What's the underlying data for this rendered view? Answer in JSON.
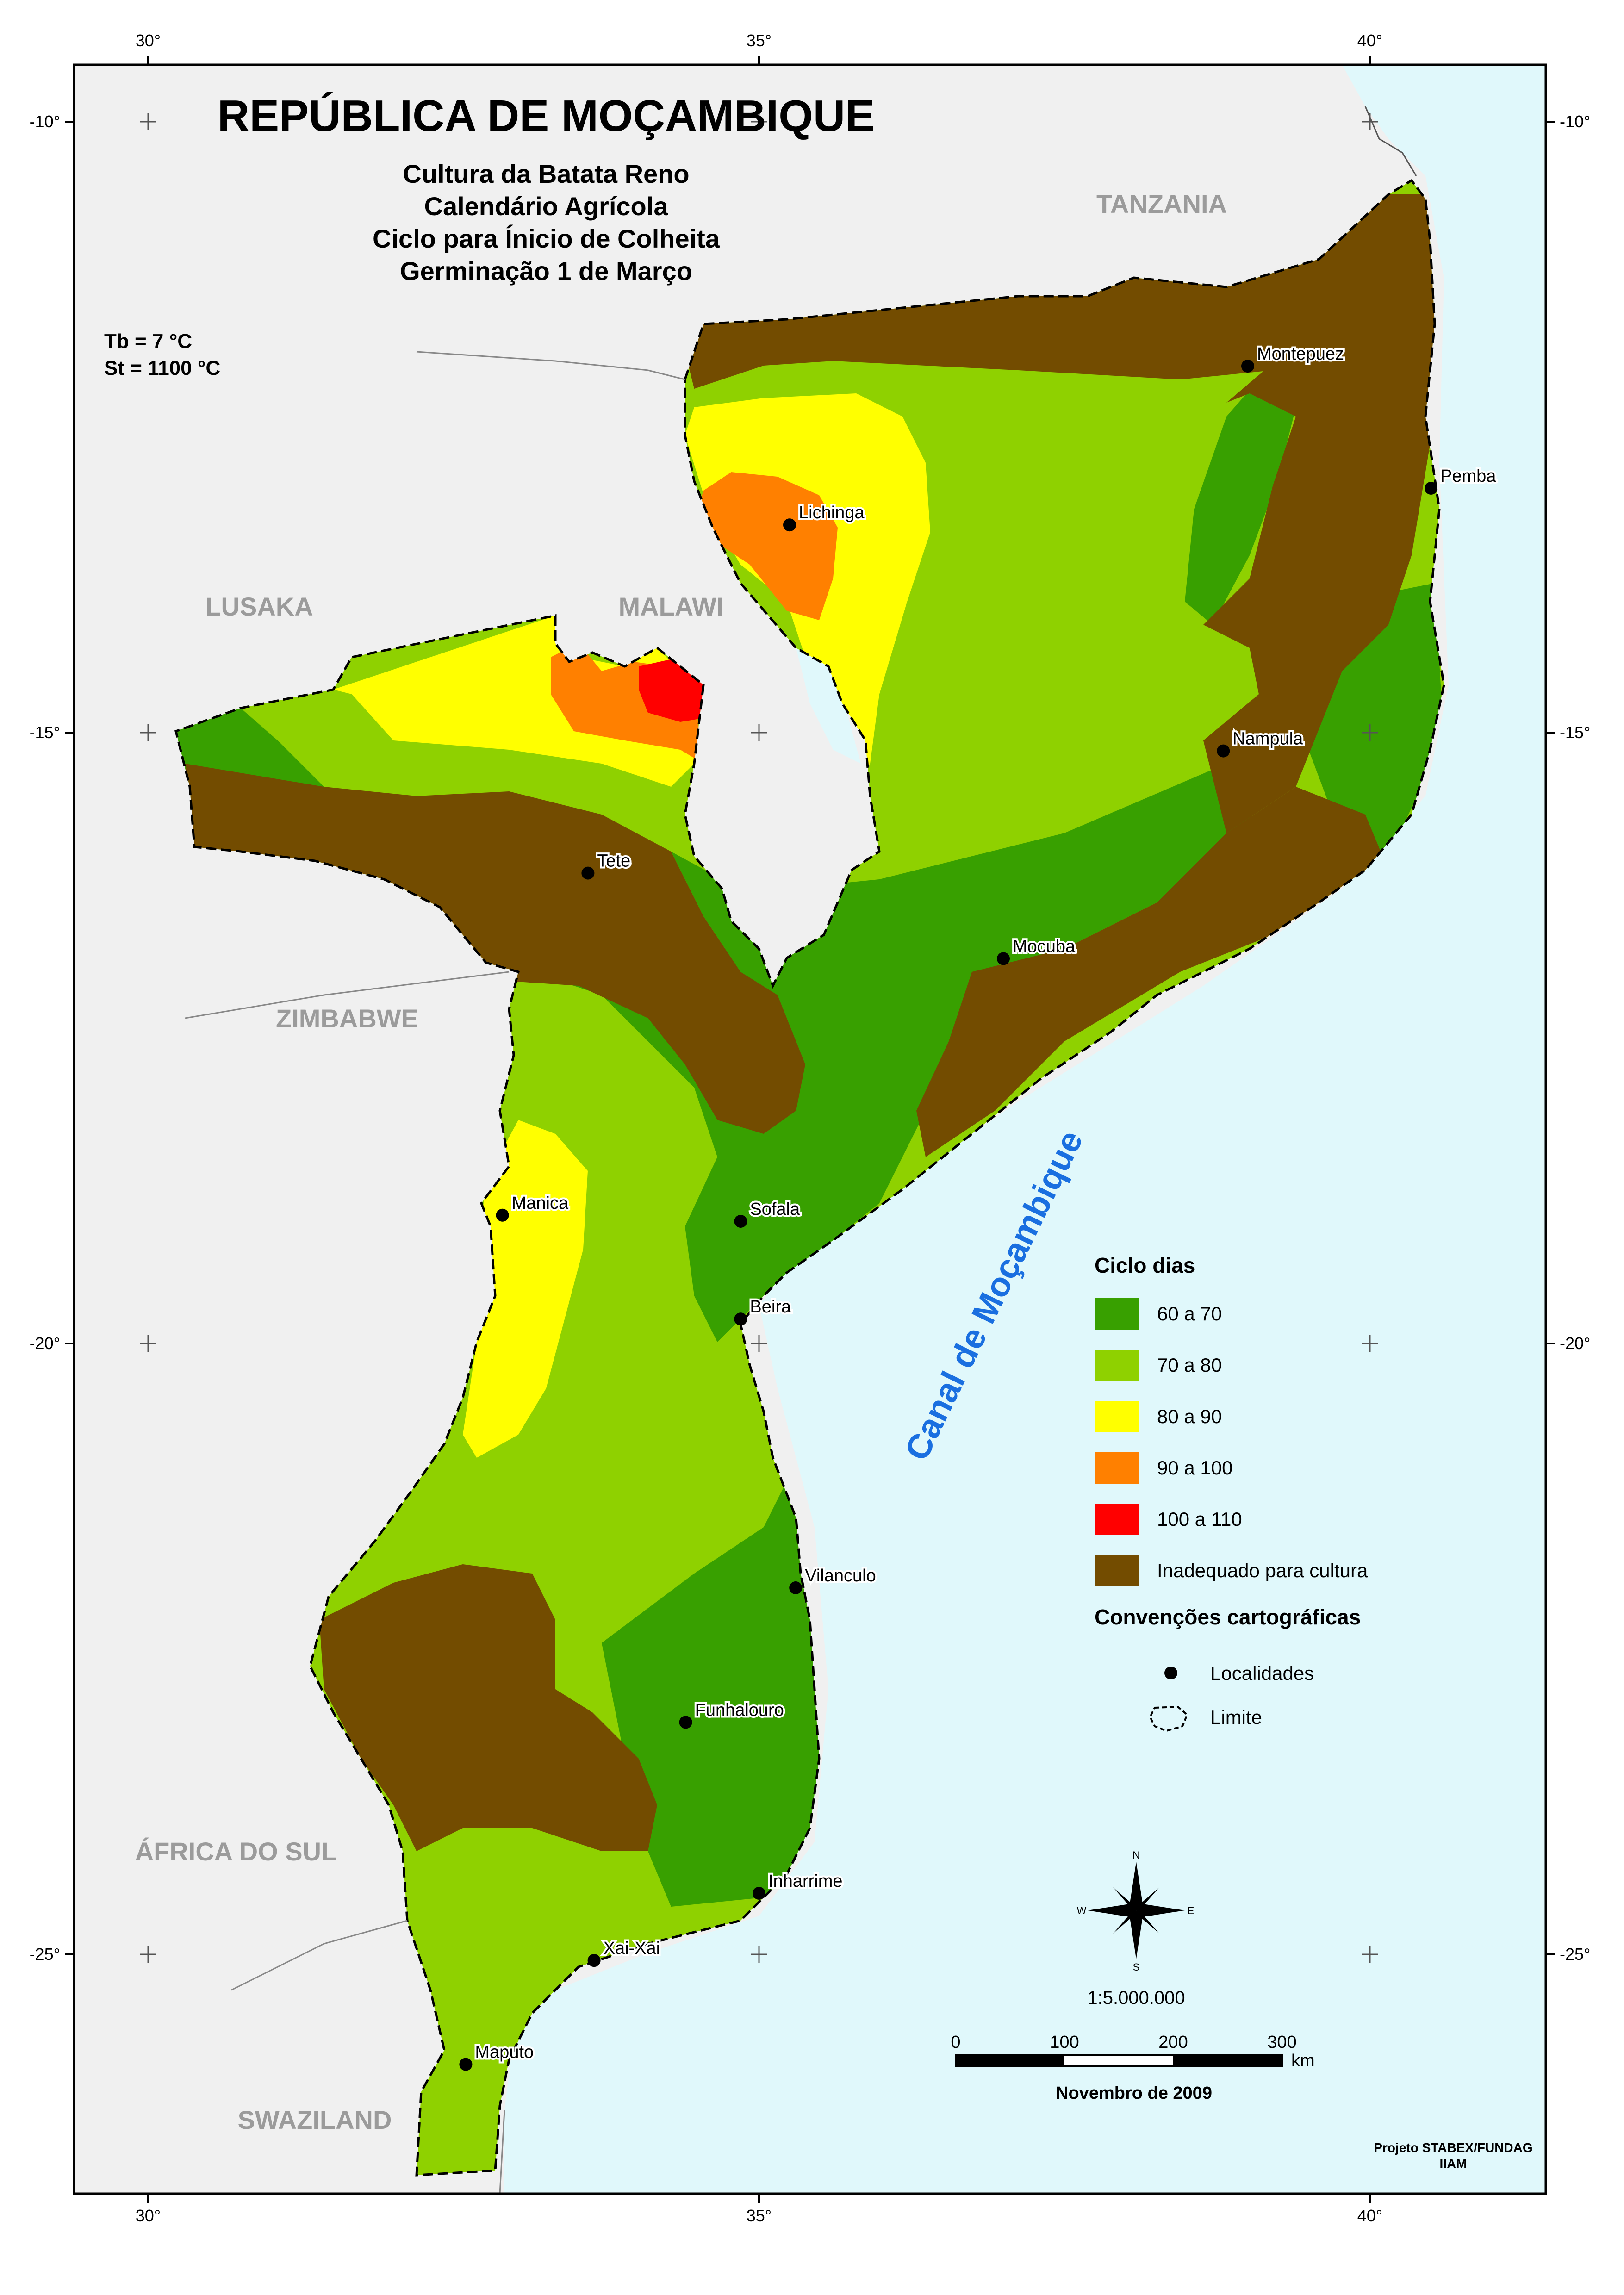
{
  "title": "REPÚBLICA DE MOÇAMBIQUE",
  "subtitle_lines": [
    "Cultura da Batata Reno",
    "Calendário Agrícola",
    "Ciclo para Ínicio de Colheita",
    "Germinação 1 de Março"
  ],
  "params": {
    "tb": "Tb = 7 °C",
    "st": "St =  1100 °C"
  },
  "countries": {
    "tanzania": "TANZANIA",
    "malawi": "MALAWI",
    "lusaka": "LUSAKA",
    "zimbabwe": "ZIMBABWE",
    "south_africa": "ÁFRICA DO SUL",
    "swaziland": "SWAZILAND"
  },
  "sea_label": "Canal de Moçambique",
  "cities": [
    {
      "name": "Montepuez",
      "lon": 39.0,
      "lat": -12.0
    },
    {
      "name": "Pemba",
      "lon": 40.5,
      "lat": -13.0
    },
    {
      "name": "Lichinga",
      "lon": 35.25,
      "lat": -13.3
    },
    {
      "name": "Nampula",
      "lon": 38.8,
      "lat": -15.15
    },
    {
      "name": "Tete",
      "lon": 33.6,
      "lat": -16.15
    },
    {
      "name": "Mocuba",
      "lon": 37.0,
      "lat": -16.85
    },
    {
      "name": "Sofala",
      "lon": 34.85,
      "lat": -19.0
    },
    {
      "name": "Manica",
      "lon": 32.9,
      "lat": -18.95
    },
    {
      "name": "Beira",
      "lon": 34.85,
      "lat": -19.8
    },
    {
      "name": "Vilanculo",
      "lon": 35.3,
      "lat": -22.0
    },
    {
      "name": "Funhalouro",
      "lon": 34.4,
      "lat": -23.1
    },
    {
      "name": "Inharrime",
      "lon": 35.0,
      "lat": -24.5
    },
    {
      "name": "Xai-Xai",
      "lon": 33.65,
      "lat": -25.05
    },
    {
      "name": "Maputo",
      "lon": 32.6,
      "lat": -25.9
    }
  ],
  "axes": {
    "lon_ticks": [
      "30°",
      "35°",
      "40°"
    ],
    "lat_ticks_left": [
      "-10°",
      "-15°",
      "-20°",
      "-25°"
    ],
    "lat_ticks_right": [
      "-10°",
      "-15°",
      "-20°",
      "-25°"
    ]
  },
  "legend": {
    "title": "Ciclo dias",
    "items": [
      {
        "label": "60 a 70",
        "color": "#38a000"
      },
      {
        "label": "70 a 80",
        "color": "#8fd100"
      },
      {
        "label": "80 a 90",
        "color": "#ffff00"
      },
      {
        "label": "90 a 100",
        "color": "#ff8000"
      },
      {
        "label": "100 a 110",
        "color": "#ff0000"
      },
      {
        "label": "Inadequado para cultura",
        "color": "#734c00"
      }
    ],
    "conv_title": "Convenções cartográficas",
    "localidades": "Localidades",
    "limite": "Limite"
  },
  "compass": {
    "n": "N",
    "s": "S",
    "e": "E",
    "w": "W"
  },
  "scale": {
    "ratio": "1:5.000.000",
    "ticks": [
      "0",
      "100",
      "200",
      "300"
    ],
    "unit": "km"
  },
  "date": "Novembro de 2009",
  "credit": [
    "Projeto STABEX/FUNDAG",
    "IIAM"
  ],
  "colors": {
    "sea": "#e0f8fb",
    "land_outside": "#f0f0f0",
    "frame": "#000000"
  }
}
